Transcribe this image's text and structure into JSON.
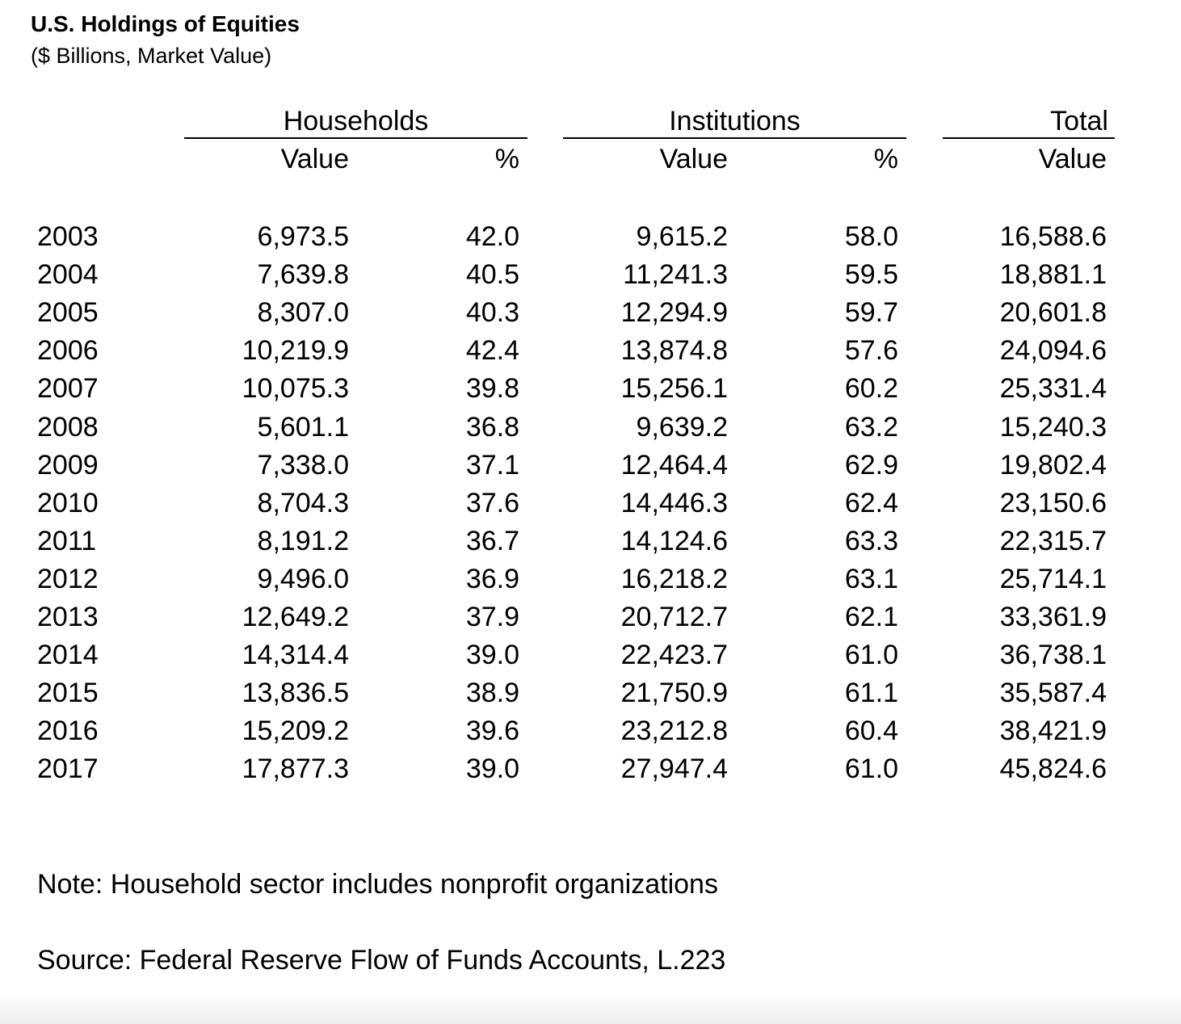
{
  "title": "U.S. Holdings of Equities",
  "subtitle": "($ Billions, Market Value)",
  "groups": {
    "households": "Households",
    "institutions": "Institutions",
    "total": "Total"
  },
  "column_headers": {
    "households_value": "Value",
    "households_pct": "%",
    "institutions_value": "Value",
    "institutions_pct": "%",
    "total_value": "Value"
  },
  "rows": [
    {
      "year": "2003",
      "hh_value": "6,973.5",
      "hh_pct": "42.0",
      "inst_value": "9,615.2",
      "inst_pct": "58.0",
      "total": "16,588.6"
    },
    {
      "year": "2004",
      "hh_value": "7,639.8",
      "hh_pct": "40.5",
      "inst_value": "11,241.3",
      "inst_pct": "59.5",
      "total": "18,881.1"
    },
    {
      "year": "2005",
      "hh_value": "8,307.0",
      "hh_pct": "40.3",
      "inst_value": "12,294.9",
      "inst_pct": "59.7",
      "total": "20,601.8"
    },
    {
      "year": "2006",
      "hh_value": "10,219.9",
      "hh_pct": "42.4",
      "inst_value": "13,874.8",
      "inst_pct": "57.6",
      "total": "24,094.6"
    },
    {
      "year": "2007",
      "hh_value": "10,075.3",
      "hh_pct": "39.8",
      "inst_value": "15,256.1",
      "inst_pct": "60.2",
      "total": "25,331.4"
    },
    {
      "year": "2008",
      "hh_value": "5,601.1",
      "hh_pct": "36.8",
      "inst_value": "9,639.2",
      "inst_pct": "63.2",
      "total": "15,240.3"
    },
    {
      "year": "2009",
      "hh_value": "7,338.0",
      "hh_pct": "37.1",
      "inst_value": "12,464.4",
      "inst_pct": "62.9",
      "total": "19,802.4"
    },
    {
      "year": "2010",
      "hh_value": "8,704.3",
      "hh_pct": "37.6",
      "inst_value": "14,446.3",
      "inst_pct": "62.4",
      "total": "23,150.6"
    },
    {
      "year": "2011",
      "hh_value": "8,191.2",
      "hh_pct": "36.7",
      "inst_value": "14,124.6",
      "inst_pct": "63.3",
      "total": "22,315.7"
    },
    {
      "year": "2012",
      "hh_value": "9,496.0",
      "hh_pct": "36.9",
      "inst_value": "16,218.2",
      "inst_pct": "63.1",
      "total": "25,714.1"
    },
    {
      "year": "2013",
      "hh_value": "12,649.2",
      "hh_pct": "37.9",
      "inst_value": "20,712.7",
      "inst_pct": "62.1",
      "total": "33,361.9"
    },
    {
      "year": "2014",
      "hh_value": "14,314.4",
      "hh_pct": "39.0",
      "inst_value": "22,423.7",
      "inst_pct": "61.0",
      "total": "36,738.1"
    },
    {
      "year": "2015",
      "hh_value": "13,836.5",
      "hh_pct": "38.9",
      "inst_value": "21,750.9",
      "inst_pct": "61.1",
      "total": "35,587.4"
    },
    {
      "year": "2016",
      "hh_value": "15,209.2",
      "hh_pct": "39.6",
      "inst_value": "23,212.8",
      "inst_pct": "60.4",
      "total": "38,421.9"
    },
    {
      "year": "2017",
      "hh_value": "17,877.3",
      "hh_pct": "39.0",
      "inst_value": "27,947.4",
      "inst_pct": "61.0",
      "total": "45,824.6"
    }
  ],
  "note": "Note: Household sector includes nonprofit organizations",
  "source": "Source: Federal Reserve Flow of Funds Accounts, L.223"
}
